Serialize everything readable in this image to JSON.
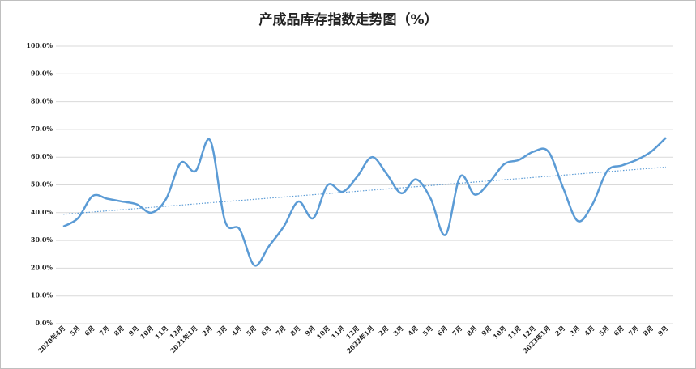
{
  "chart_data": {
    "type": "line",
    "title": "产成品库存指数走势图（%）",
    "categories": [
      "2020年4月",
      "5月",
      "6月",
      "7月",
      "8月",
      "9月",
      "10月",
      "11月",
      "12月",
      "2021年1月",
      "2月",
      "3月",
      "4月",
      "5月",
      "6月",
      "7月",
      "8月",
      "9月",
      "10月",
      "11月",
      "12月",
      "2022年1月",
      "2月",
      "3月",
      "4月",
      "5月",
      "6月",
      "7月",
      "8月",
      "9月",
      "10月",
      "11月",
      "12月",
      "2023年1月",
      "2月",
      "3月",
      "4月",
      "5月",
      "6月",
      "7月",
      "8月",
      "9月"
    ],
    "series": [
      {
        "color": "#5b9bd5",
        "values": [
          35,
          38,
          46,
          45,
          44,
          43,
          40,
          45,
          58,
          55,
          66,
          37,
          34,
          21,
          28,
          35,
          44,
          38,
          50,
          47.5,
          53,
          60,
          54,
          47,
          52,
          45,
          32,
          53,
          46.5,
          51,
          57.5,
          59,
          62,
          62,
          49,
          37,
          43,
          55,
          57,
          59,
          62,
          67
        ]
      }
    ],
    "ylim": [
      0,
      100
    ],
    "yticks": [
      {
        "value": 0,
        "label": "0.0%"
      },
      {
        "value": 10,
        "label": "10.0%"
      },
      {
        "value": 20,
        "label": "20.0%"
      },
      {
        "value": 30,
        "label": "30.0%"
      },
      {
        "value": 40,
        "label": "40.0%"
      },
      {
        "value": 50,
        "label": "50.0%"
      },
      {
        "value": 60,
        "label": "60.0%"
      },
      {
        "value": 70,
        "label": "70.0%"
      },
      {
        "value": 80,
        "label": "80.0%"
      },
      {
        "value": 90,
        "label": "90.0%"
      },
      {
        "value": 100,
        "label": "100.0%"
      }
    ],
    "grid": true,
    "smooth": true,
    "trendline": "linear"
  }
}
